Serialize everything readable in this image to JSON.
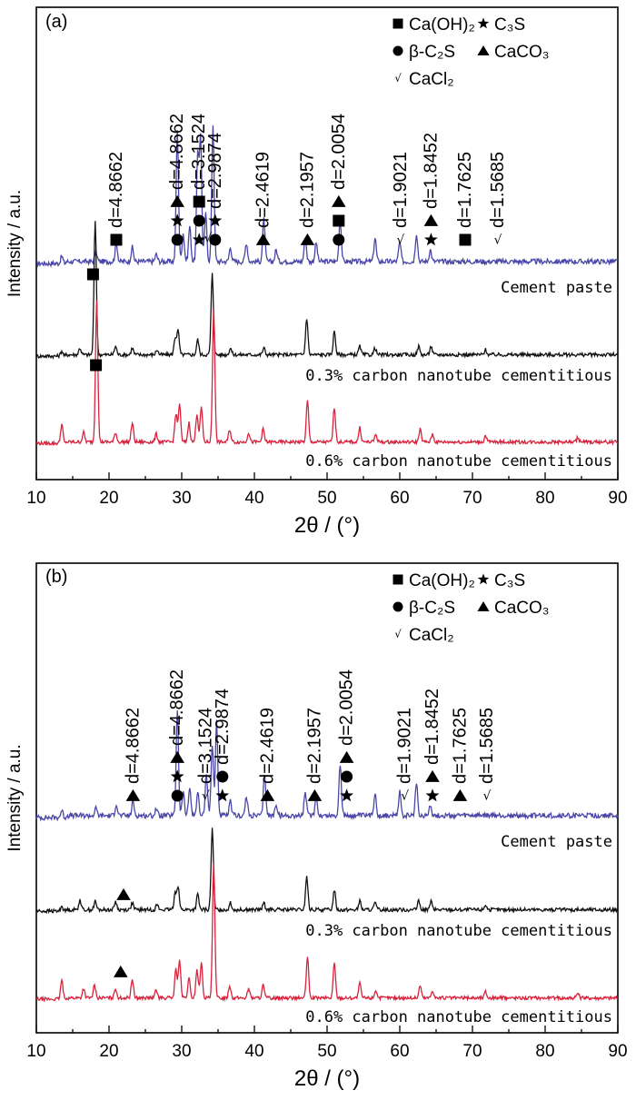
{
  "chart_data": [
    {
      "type": "line",
      "panel_label": "(a)",
      "xlabel": "2θ / (°)",
      "ylabel": "Intensity / a.u.",
      "xlim": [
        10,
        90
      ],
      "x_ticks": [
        "10",
        "20",
        "30",
        "40",
        "50",
        "60",
        "70",
        "80",
        "90"
      ],
      "legend": {
        "position": "top-right",
        "entries": [
          {
            "symbol": "square",
            "label": "Ca(OH)₂"
          },
          {
            "symbol": "star",
            "label": "C₃S"
          },
          {
            "symbol": "circle",
            "label": "β-C₂S"
          },
          {
            "symbol": "triangle",
            "label": "CaCO₃"
          },
          {
            "symbol": "check",
            "label": "CaCl₂"
          }
        ]
      },
      "series": [
        {
          "name": "Cement paste",
          "color": "#4a46a8",
          "peaks": [
            [
              13.5,
              3
            ],
            [
              18.2,
              4
            ],
            [
              21.0,
              8
            ],
            [
              23.2,
              6
            ],
            [
              26.5,
              3
            ],
            [
              29.4,
              55
            ],
            [
              30.2,
              12
            ],
            [
              31.1,
              15
            ],
            [
              32.2,
              45
            ],
            [
              32.6,
              52
            ],
            [
              33.3,
              20
            ],
            [
              34.3,
              58
            ],
            [
              36.7,
              6
            ],
            [
              38.9,
              8
            ],
            [
              41.3,
              18
            ],
            [
              43.0,
              5
            ],
            [
              47.0,
              10
            ],
            [
              48.5,
              8
            ],
            [
              51.8,
              18
            ],
            [
              56.6,
              10
            ],
            [
              60.0,
              8
            ],
            [
              62.3,
              12
            ],
            [
              64.2,
              5
            ]
          ]
        },
        {
          "name": "0.3% carbon nanotube cementitious",
          "color": "#111111",
          "peaks": [
            [
              13.5,
              3
            ],
            [
              16.0,
              4
            ],
            [
              18.1,
              80
            ],
            [
              20.9,
              5
            ],
            [
              23.2,
              4
            ],
            [
              26.6,
              3
            ],
            [
              29.1,
              10
            ],
            [
              29.5,
              14
            ],
            [
              32.2,
              9
            ],
            [
              34.2,
              48
            ],
            [
              36.7,
              4
            ],
            [
              41.3,
              4
            ],
            [
              47.2,
              22
            ],
            [
              51.0,
              14
            ],
            [
              54.5,
              5
            ],
            [
              56.6,
              4
            ],
            [
              62.6,
              5
            ],
            [
              64.3,
              5
            ],
            [
              71.8,
              3
            ]
          ]
        },
        {
          "name": "0.6% carbon nanotube cementitious",
          "color": "#d8233c",
          "peaks": [
            [
              13.5,
              12
            ],
            [
              16.5,
              6
            ],
            [
              18.3,
              90
            ],
            [
              20.9,
              6
            ],
            [
              23.2,
              12
            ],
            [
              26.5,
              5
            ],
            [
              29.2,
              18
            ],
            [
              29.7,
              24
            ],
            [
              31.0,
              12
            ],
            [
              32.1,
              18
            ],
            [
              32.7,
              22
            ],
            [
              34.4,
              85
            ],
            [
              36.6,
              8
            ],
            [
              39.2,
              6
            ],
            [
              41.2,
              8
            ],
            [
              47.3,
              26
            ],
            [
              51.0,
              22
            ],
            [
              54.5,
              9
            ],
            [
              56.7,
              5
            ],
            [
              62.8,
              8
            ],
            [
              64.5,
              5
            ],
            [
              71.8,
              4
            ],
            [
              84.5,
              3
            ]
          ]
        }
      ],
      "annotations": [
        {
          "d": "4.8662",
          "x": 21.0,
          "symbols": [
            "square"
          ]
        },
        {
          "d": "4.8662",
          "x": 29.4,
          "symbols": [
            "triangle",
            "star",
            "circle"
          ]
        },
        {
          "d": "3.1524",
          "x": 32.4,
          "symbols": [
            "square",
            "circle",
            "star"
          ]
        },
        {
          "d": "2.9874",
          "x": 34.6,
          "symbols": [
            "star",
            "circle"
          ]
        },
        {
          "d": "2.4619",
          "x": 41.2,
          "symbols": [
            "triangle"
          ]
        },
        {
          "d": "2.1957",
          "x": 47.3,
          "symbols": [
            "triangle"
          ]
        },
        {
          "d": "2.0054",
          "x": 51.6,
          "symbols": [
            "triangle",
            "square",
            "circle"
          ]
        },
        {
          "d": "1.9021",
          "x": 60.1,
          "symbols": [
            "check"
          ]
        },
        {
          "d": "1.8452",
          "x": 64.3,
          "symbols": [
            "triangle",
            "star"
          ]
        },
        {
          "d": "1.7625",
          "x": 69.0,
          "symbols": [
            "square"
          ]
        },
        {
          "d": "1.5685",
          "x": 73.5,
          "symbols": [
            "check"
          ]
        }
      ],
      "extra_marks": [
        {
          "symbol": "square",
          "x": 17.8,
          "near_series": "0.3% carbon nanotube cementitious"
        },
        {
          "symbol": "square",
          "x": 18.2,
          "near_series": "0.6% carbon nanotube cementitious"
        },
        {
          "symbol": "check",
          "x": 33.6,
          "near_series": "Cement paste"
        }
      ]
    },
    {
      "type": "line",
      "panel_label": "(b)",
      "xlabel": "2θ / (°)",
      "ylabel": "Intensity / a.u.",
      "xlim": [
        10,
        90
      ],
      "x_ticks": [
        "10",
        "20",
        "30",
        "40",
        "50",
        "60",
        "70",
        "80",
        "90"
      ],
      "legend": {
        "position": "top-right",
        "entries": [
          {
            "symbol": "square",
            "label": "Ca(OH)₂"
          },
          {
            "symbol": "star",
            "label": "C₃S"
          },
          {
            "symbol": "circle",
            "label": "β-C₂S"
          },
          {
            "symbol": "triangle",
            "label": "CaCO₃"
          },
          {
            "symbol": "check",
            "label": "CaCl₂"
          }
        ]
      },
      "series": [
        {
          "name": "Cement paste",
          "color": "#4a46a8",
          "peaks": [
            [
              13.5,
              3
            ],
            [
              18.2,
              3
            ],
            [
              21.0,
              5
            ],
            [
              23.3,
              6
            ],
            [
              26.5,
              3
            ],
            [
              29.4,
              45
            ],
            [
              30.2,
              10
            ],
            [
              31.1,
              12
            ],
            [
              32.2,
              10
            ],
            [
              33.4,
              18
            ],
            [
              34.2,
              30
            ],
            [
              34.8,
              40
            ],
            [
              36.7,
              6
            ],
            [
              38.9,
              8
            ],
            [
              41.4,
              18
            ],
            [
              43.0,
              5
            ],
            [
              47.0,
              10
            ],
            [
              48.5,
              8
            ],
            [
              51.8,
              22
            ],
            [
              56.6,
              10
            ],
            [
              60.0,
              10
            ],
            [
              62.3,
              14
            ],
            [
              64.2,
              5
            ]
          ]
        },
        {
          "name": "0.3% carbon nanotube cementitious",
          "color": "#111111",
          "peaks": [
            [
              13.5,
              3
            ],
            [
              16.0,
              6
            ],
            [
              18.1,
              5
            ],
            [
              20.9,
              5
            ],
            [
              23.2,
              4
            ],
            [
              26.6,
              3
            ],
            [
              29.1,
              10
            ],
            [
              29.5,
              14
            ],
            [
              32.2,
              9
            ],
            [
              34.2,
              48
            ],
            [
              36.7,
              4
            ],
            [
              41.3,
              4
            ],
            [
              47.2,
              20
            ],
            [
              51.0,
              12
            ],
            [
              54.5,
              5
            ],
            [
              56.6,
              4
            ],
            [
              62.6,
              5
            ],
            [
              64.3,
              5
            ],
            [
              71.8,
              3
            ]
          ]
        },
        {
          "name": "0.6% carbon nanotube cementitious",
          "color": "#d8233c",
          "peaks": [
            [
              13.5,
              12
            ],
            [
              16.5,
              6
            ],
            [
              18.0,
              8
            ],
            [
              20.9,
              6
            ],
            [
              23.2,
              12
            ],
            [
              26.5,
              5
            ],
            [
              29.2,
              18
            ],
            [
              29.7,
              24
            ],
            [
              31.0,
              12
            ],
            [
              32.1,
              18
            ],
            [
              32.7,
              22
            ],
            [
              34.4,
              85
            ],
            [
              36.6,
              8
            ],
            [
              39.2,
              6
            ],
            [
              41.2,
              8
            ],
            [
              47.3,
              26
            ],
            [
              51.0,
              22
            ],
            [
              54.5,
              9
            ],
            [
              56.7,
              5
            ],
            [
              62.8,
              8
            ],
            [
              64.5,
              5
            ],
            [
              71.8,
              4
            ],
            [
              84.5,
              3
            ]
          ]
        }
      ],
      "annotations": [
        {
          "d": "4.8662",
          "x": 23.3,
          "symbols": [
            "triangle"
          ]
        },
        {
          "d": "4.8662",
          "x": 29.4,
          "symbols": [
            "triangle",
            "star",
            "circle"
          ]
        },
        {
          "d": "3.1524",
          "x": 33.3,
          "symbols": [
            "check"
          ]
        },
        {
          "d": "2.9874",
          "x": 35.6,
          "symbols": [
            "circle",
            "star"
          ]
        },
        {
          "d": "2.4619",
          "x": 41.8,
          "symbols": [
            "triangle"
          ]
        },
        {
          "d": "2.1957",
          "x": 48.3,
          "symbols": [
            "triangle"
          ]
        },
        {
          "d": "2.0054",
          "x": 52.7,
          "symbols": [
            "triangle",
            "circle",
            "star"
          ]
        },
        {
          "d": "1.9021",
          "x": 60.7,
          "symbols": [
            "check"
          ]
        },
        {
          "d": "1.8452",
          "x": 64.5,
          "symbols": [
            "triangle",
            "star"
          ]
        },
        {
          "d": "1.7625",
          "x": 68.3,
          "symbols": [
            "triangle"
          ]
        },
        {
          "d": "1.5685",
          "x": 72.0,
          "symbols": [
            "check"
          ]
        }
      ],
      "extra_marks": [
        {
          "symbol": "triangle",
          "x": 22.0,
          "near_series": "0.3% carbon nanotube cementitious"
        },
        {
          "symbol": "triangle",
          "x": 21.6,
          "near_series": "0.6% carbon nanotube cementitious"
        }
      ]
    }
  ]
}
